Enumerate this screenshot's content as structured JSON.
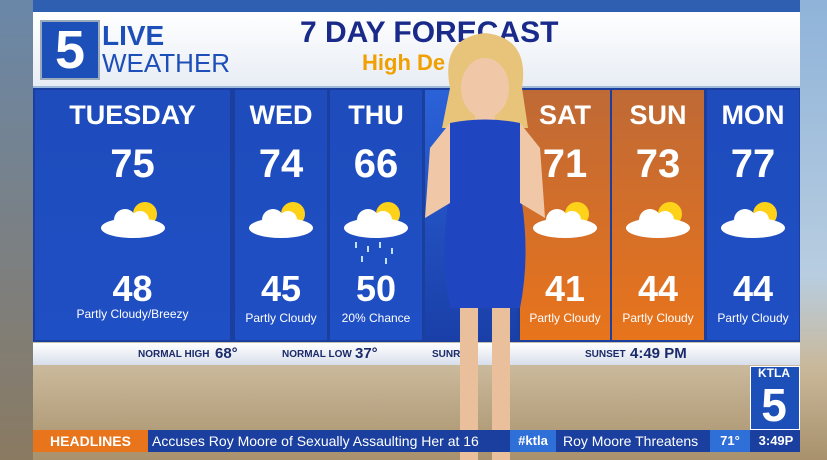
{
  "logo": {
    "number": "5",
    "line1": "LIVE",
    "line2": "WEATHER"
  },
  "header": {
    "title": "7 DAY FORECAST",
    "subtitle": "High De"
  },
  "days": [
    {
      "name": "TUESDAY",
      "high": 75,
      "low": 48,
      "condition": "Partly Cloudy/Breezy",
      "color": "#1f4fc4"
    },
    {
      "name": "WED",
      "high": 74,
      "low": 45,
      "condition": "Partly Cloudy",
      "color": "#1f4fc4"
    },
    {
      "name": "THU",
      "high": 66,
      "low": 50,
      "condition": "20% Chance",
      "color": "#1f4fc4"
    },
    {
      "name": "SAT",
      "high": 71,
      "low": 41,
      "condition": "Partly Cloudy",
      "color": "#e8741c"
    },
    {
      "name": "SUN",
      "high": 73,
      "low": 44,
      "condition": "Partly Cloudy",
      "color": "#e8741c"
    },
    {
      "name": "MON",
      "high": 77,
      "low": 44,
      "condition": "Partly Cloudy",
      "color": "#1f4fc4"
    }
  ],
  "almanac": {
    "normal_high_label": "NORMAL HIGH",
    "normal_high": "68°",
    "normal_low_label": "NORMAL LOW",
    "normal_low": "37°",
    "sunrise_label": "SUNRISE",
    "sunset_label": "SUNSET",
    "sunset": "4:49 PM"
  },
  "ticker": {
    "label": "HEADLINES",
    "text": "Accuses Roy Moore of Sexually Assaulting Her at 16",
    "tag": "#ktla",
    "text2": "Roy Moore Threatens",
    "temp": "71°",
    "time": "3:49P"
  },
  "station": {
    "name": "KTLA",
    "number": "5"
  }
}
